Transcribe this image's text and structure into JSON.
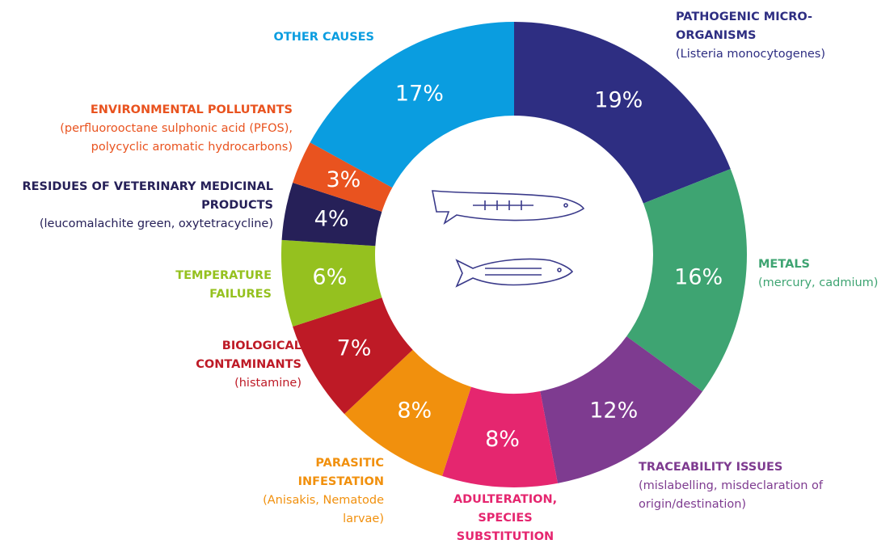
{
  "chart_data": {
    "type": "donut",
    "categories": [
      "PATHOGENIC MICRO-ORGANISMS",
      "METALS",
      "TRACEABILITY ISSUES",
      "ADULTERATION, SPECIES SUBSTITUTION",
      "PARASITIC INFESTATION",
      "BIOLOGICAL CONTAMINANTS",
      "TEMPERATURE FAILURES",
      "RESIDUES OF VETERINARY MEDICINAL PRODUCTS",
      "ENVIRONMENTAL POLLUTANTS",
      "OTHER CAUSES"
    ],
    "details": [
      "(Listeria monocytogenes)",
      "(mercury, cadmium)",
      "(mislabelling, misdeclaration of origin/destination)",
      null,
      "(Anisakis, Nematode larvae)",
      "(histamine)",
      null,
      "(leucomalachite green, oxytetracycline)",
      "(perfluorooctane sulphonic acid (PFOS), polycyclic aromatic hydrocarbons)",
      null
    ],
    "values": [
      19,
      16,
      12,
      8,
      8,
      7,
      6,
      4,
      3,
      17
    ],
    "value_labels": [
      "19%",
      "16%",
      "12%",
      "8%",
      "8%",
      "7%",
      "6%",
      "4%",
      "3%",
      "17%"
    ],
    "colors": [
      "#2e2e82",
      "#3ea472",
      "#7e3b90",
      "#e5266f",
      "#f1900d",
      "#be1a26",
      "#95c11f",
      "#262058",
      "#e9531f",
      "#0a9de0"
    ],
    "label_colors": [
      "#2e2e82",
      "#3ea472",
      "#7e3b90",
      "#e5266f",
      "#f1900d",
      "#be1a26",
      "#95c11f",
      "#262058",
      "#e9531f",
      "#0a9de0"
    ]
  }
}
